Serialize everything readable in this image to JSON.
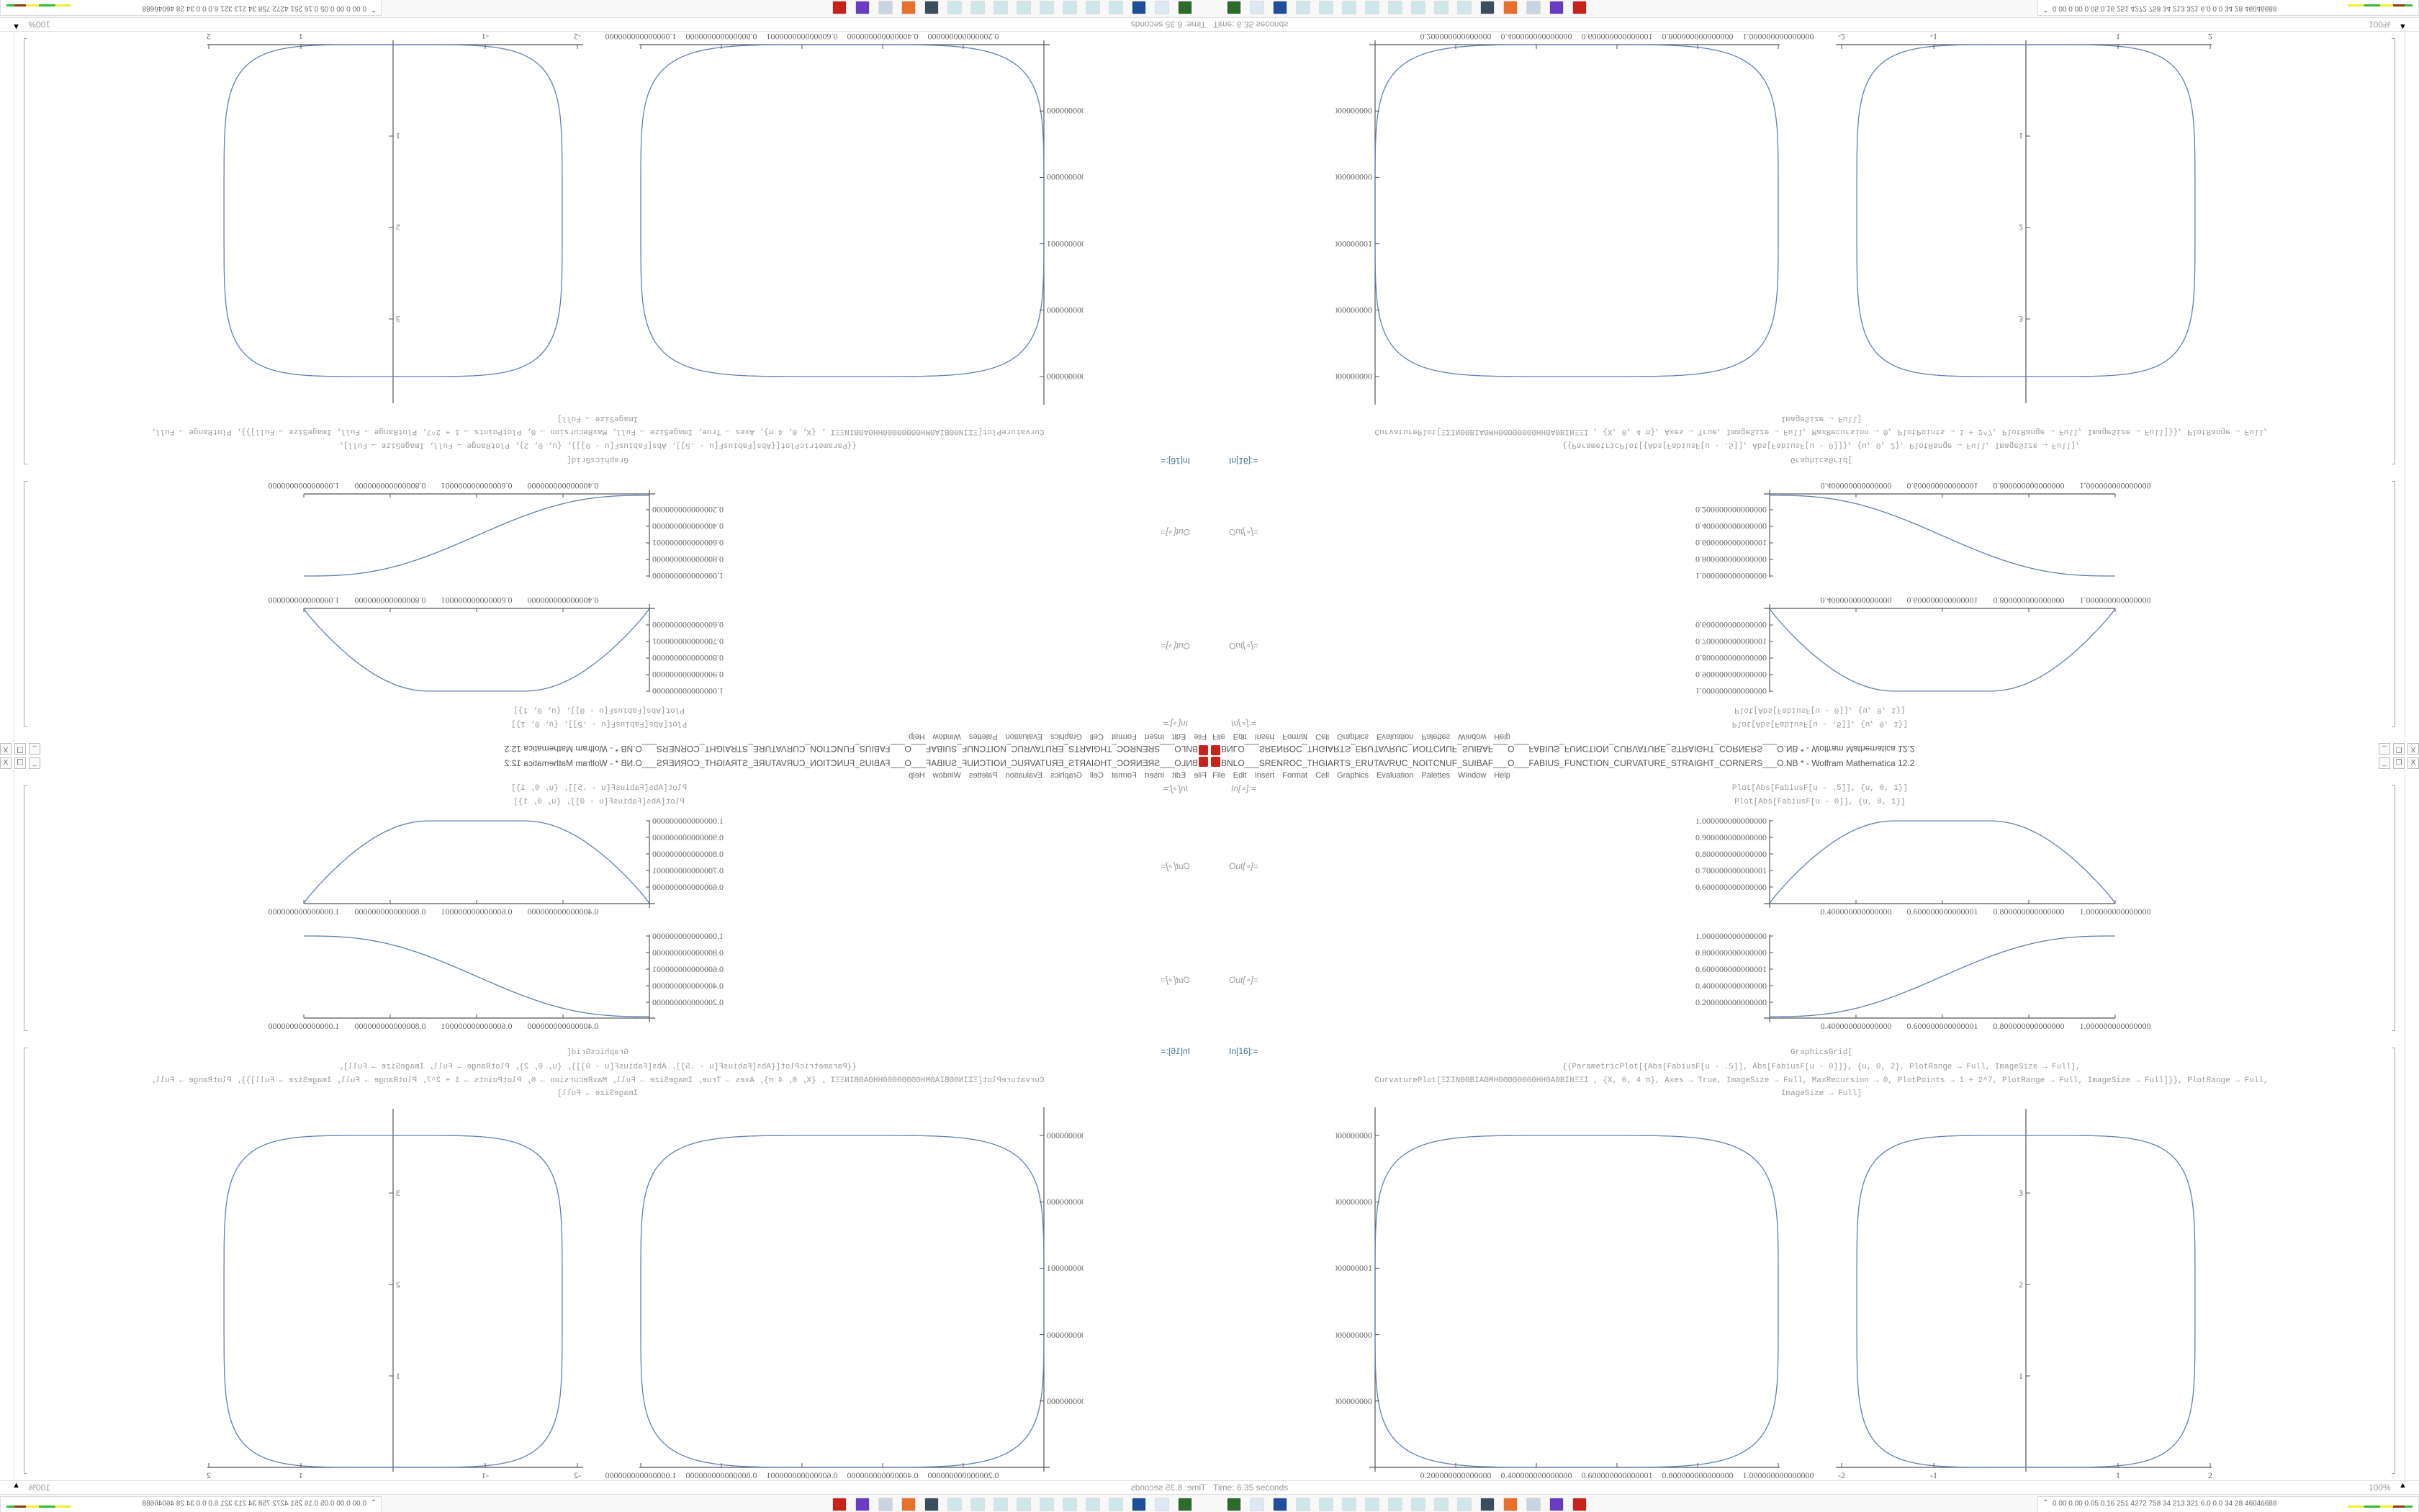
{
  "window": {
    "title": "BNLO___SRENROC_THGIARTS_ERUTAVRUC_NOITCNUF_SUIBAF___O___FABIUS_FUNCTION_CURVATURE_STRAIGHT_CORNERS___O.NB * - Wolfram Mathematica 12.2",
    "buttons": [
      "_",
      "❐",
      "X"
    ]
  },
  "menu": [
    "File",
    "Edit",
    "Insert",
    "Format",
    "Cell",
    "Graphics",
    "Evaluation",
    "Palettes",
    "Window",
    "Help"
  ],
  "cells": {
    "in1_label": "In[∘]:=",
    "in1_lines": [
      "Plot[Abs[FabiusF[u - .5]], {u, 0, 1}]",
      "Plot[Abs[FabiusF[u - 0]], {u, 0, 1}]"
    ],
    "out1_label": "Out[∘]=",
    "out2_label": "Out[∘]=",
    "in2_label": "In[16]:=",
    "in2_lines": [
      "GraphicsGrid[",
      "{{ParametricPlot[{Abs[FabiusF[u - .5]], Abs[FabiusF[u - 0]]}, {u, 0, 2}, PlotRange → Full, ImageSize → Full],",
      "CurvaturePlot[ΞΣΙΝΘΘΒΙΑΘΜΗΘΘΘΘΘΘΘΘΗΗΘΑΘΒΙΝΞΞΙ            , {X, 0, 4 π}, Axes → True, ImageSize → Full, MaxRecursion → 0, PlotPoints → 1 + 2^7, PlotRange → Full, ImageSize → Full]}}, PlotRange → Full,",
      "ImageSize → Full]"
    ]
  },
  "plots": {
    "small1": {
      "y_ticks": [
        "1.000000000000000",
        "0.900000000000000",
        "0.800000000000000",
        "0.700000000000001",
        "0.600000000000000"
      ],
      "x_ticks": [
        "0.400000000000000",
        "0.600000000000001",
        "0.800000000000000",
        "1.000000000000000"
      ]
    },
    "small2": {
      "y_ticks": [
        "1.000000000000000",
        "0.800000000000000",
        "0.600000000000001",
        "0.400000000000000",
        "0.200000000000000"
      ],
      "x_ticks": [
        "0.400000000000000",
        "0.600000000000001",
        "0.800000000000000",
        "1.000000000000000"
      ]
    },
    "grid_left": {
      "y_ticks": [
        "1.000000000000000",
        "0.800000000000000",
        "0.600000000000001",
        "0.400000000000000",
        "0.200000000000000"
      ],
      "x_ticks": [
        "0.200000000000000",
        "0.400000000000000",
        "0.600000000000001",
        "0.800000000000000",
        "1.000000000000000"
      ]
    },
    "grid_right": {
      "y_ticks": [
        "3",
        "2",
        "1"
      ],
      "x_ticks": [
        "-2",
        "-1",
        "1",
        "2"
      ]
    },
    "curve_color": "#5e81b5"
  },
  "status": {
    "time": "Time: 6.35 seconds",
    "zoom": "100%"
  },
  "taskbar": {
    "icons": [
      "terminal-green",
      "computer",
      "floppy-64",
      "notepad",
      "notepad",
      "notepad",
      "notepad",
      "notepad",
      "notepad",
      "notepad",
      "notepad",
      "terminal",
      "firefox",
      "document",
      "purple-app",
      "mathematica"
    ],
    "tray_text": "0.00 0.00 0.05 0.16 251 4272 758 34 213 321 6.0 0.0 34 28 46046688"
  }
}
